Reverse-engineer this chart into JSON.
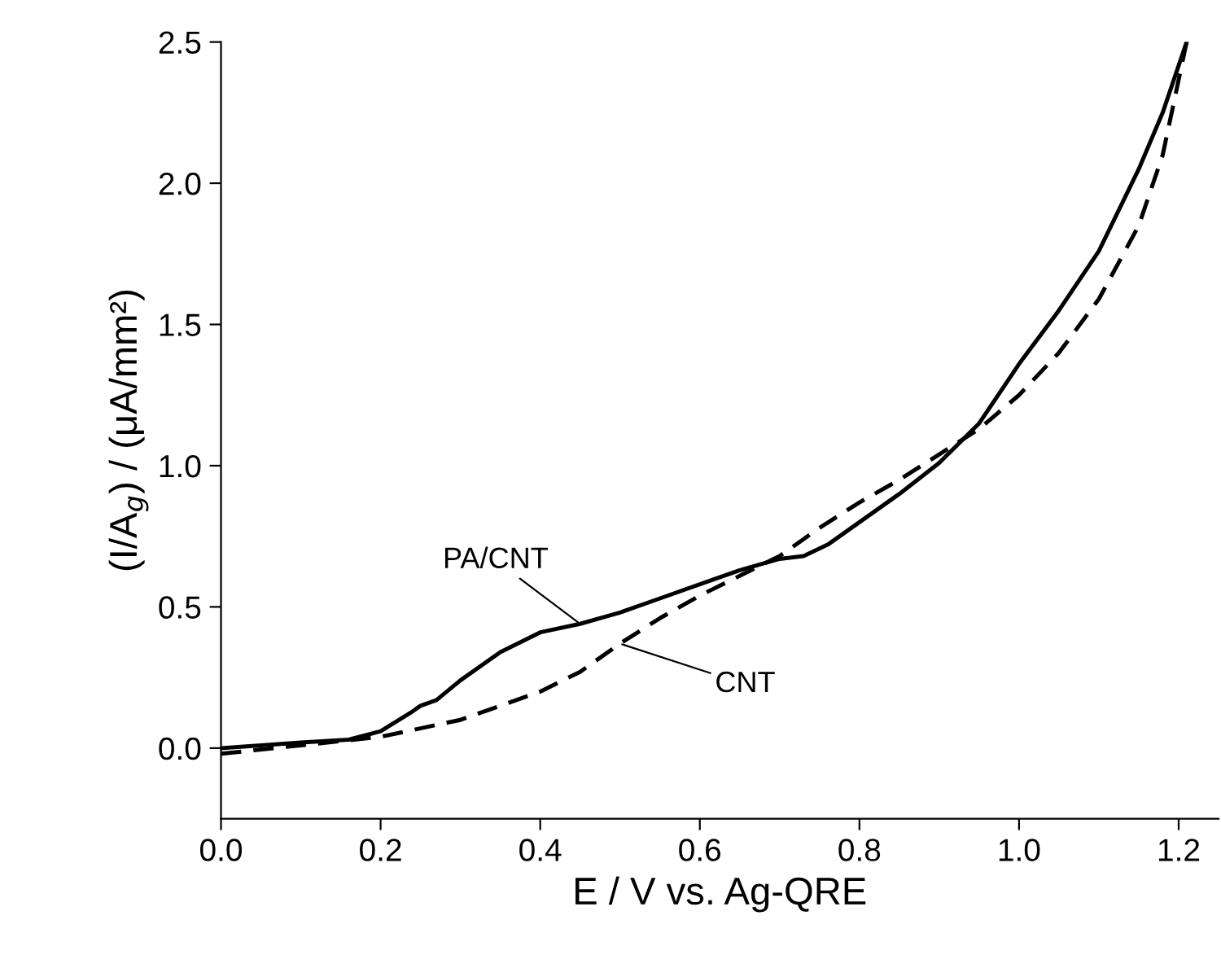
{
  "chart_data": {
    "type": "line",
    "xlabel": "E / V vs. Ag-QRE",
    "ylabel": "(I/A$_{g}$) / (μA/mm²)",
    "xlim": [
      0,
      1.25
    ],
    "ylim": [
      -0.25,
      2.5
    ],
    "xticks": [
      {
        "value": 0,
        "label": "0.0"
      },
      0.2,
      0.4,
      0.6,
      0.8,
      {
        "value": 1,
        "label": "1.0"
      },
      1.2
    ],
    "yticks": [
      {
        "value": 0,
        "label": "0.0"
      },
      0.5,
      {
        "value": 1,
        "label": "1.0"
      },
      1.5,
      {
        "value": 2,
        "label": "2.0"
      },
      2.5
    ],
    "grid": false,
    "legend": false,
    "marker": "none",
    "series": [
      {
        "name": "PA/CNT",
        "color": "#000000",
        "line_style": "solid",
        "x": [
          0,
          0.1,
          0.16,
          0.2,
          0.24,
          0.25,
          0.27,
          0.3,
          0.35,
          0.4,
          0.45,
          0.5,
          0.55,
          0.6,
          0.65,
          0.7,
          0.73,
          0.76,
          0.8,
          0.85,
          0.9,
          0.95,
          1.0,
          1.05,
          1.1,
          1.15,
          1.18,
          1.21
        ],
        "values": [
          0.0,
          0.02,
          0.03,
          0.06,
          0.13,
          0.15,
          0.17,
          0.24,
          0.34,
          0.41,
          0.44,
          0.48,
          0.53,
          0.58,
          0.63,
          0.67,
          0.68,
          0.72,
          0.8,
          0.9,
          1.01,
          1.15,
          1.36,
          1.55,
          1.76,
          2.05,
          2.25,
          2.5
        ]
      },
      {
        "name": "CNT",
        "color": "#000000",
        "line_style": "dashed",
        "x": [
          0,
          0.1,
          0.2,
          0.3,
          0.4,
          0.45,
          0.5,
          0.55,
          0.6,
          0.65,
          0.7,
          0.75,
          0.8,
          0.85,
          0.9,
          0.95,
          1.0,
          1.05,
          1.1,
          1.15,
          1.18,
          1.21
        ],
        "values": [
          -0.02,
          0.01,
          0.04,
          0.1,
          0.2,
          0.27,
          0.37,
          0.46,
          0.54,
          0.61,
          0.68,
          0.78,
          0.87,
          0.95,
          1.04,
          1.13,
          1.25,
          1.4,
          1.59,
          1.85,
          2.1,
          2.5
        ]
      }
    ]
  }
}
